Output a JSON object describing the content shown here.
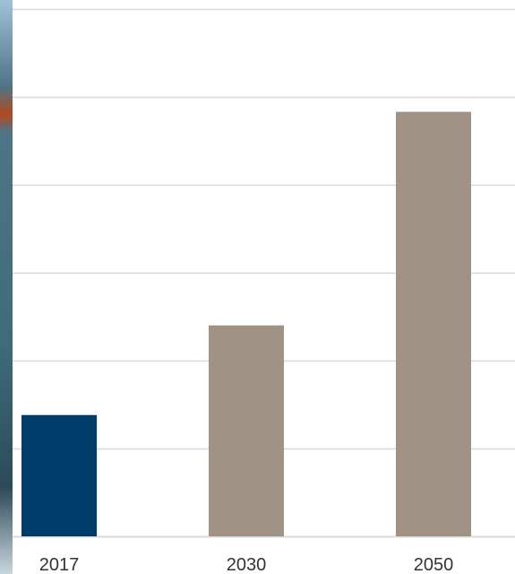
{
  "chart_data": {
    "type": "bar",
    "categories": [
      "2017",
      "2030",
      "2050"
    ],
    "values": [
      1.38,
      2.4,
      4.83
    ],
    "ylim": [
      0,
      6
    ],
    "grid": true,
    "legend": "none",
    "title": "",
    "xlabel": "",
    "ylabel": "",
    "colors": {
      "highlight": "#003c69",
      "default": "#a09285",
      "gridline": "#d9d9d9",
      "axis": "#d9d9d9",
      "background_strip": "#5b7f95"
    },
    "bar_colors": [
      "#003c69",
      "#a09285",
      "#a09285"
    ]
  }
}
